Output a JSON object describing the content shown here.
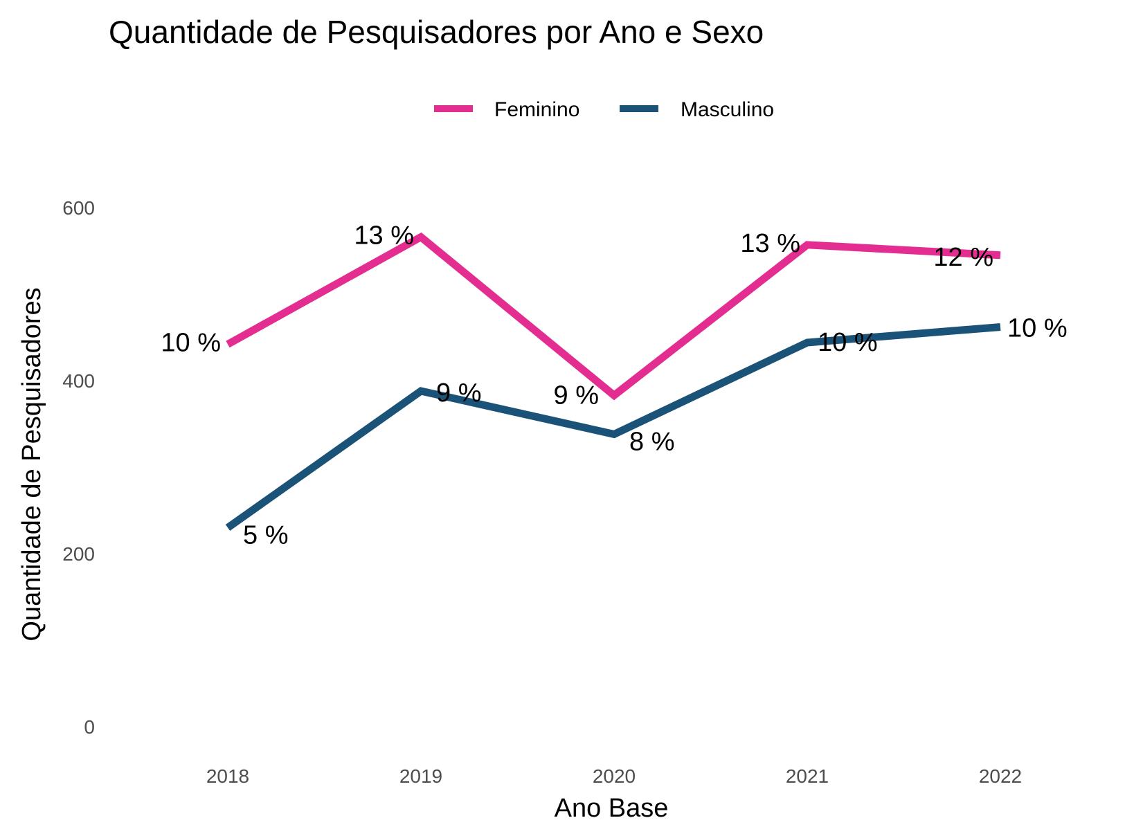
{
  "chart_data": {
    "type": "line",
    "title": "Quantidade de Pesquisadores por Ano e Sexo",
    "xlabel": "Ano Base",
    "ylabel": "Quantidade de Pesquisadores",
    "categories": [
      "2018",
      "2019",
      "2020",
      "2021",
      "2022"
    ],
    "ylim": [
      0,
      600
    ],
    "yticks": [
      0,
      200,
      400,
      600
    ],
    "grid": false,
    "legend_position": "top",
    "series": [
      {
        "name": "Feminino",
        "color": "#e32d91",
        "values": [
          442,
          566,
          383,
          557,
          545
        ],
        "labels": [
          "10 %",
          "13 %",
          "9 %",
          "13 %",
          "12 %"
        ]
      },
      {
        "name": "Masculino",
        "color": "#1b5277",
        "values": [
          230,
          388,
          338,
          444,
          462
        ],
        "labels": [
          "5 %",
          "9 %",
          "8 %",
          "10 %",
          "10 %"
        ]
      }
    ]
  }
}
